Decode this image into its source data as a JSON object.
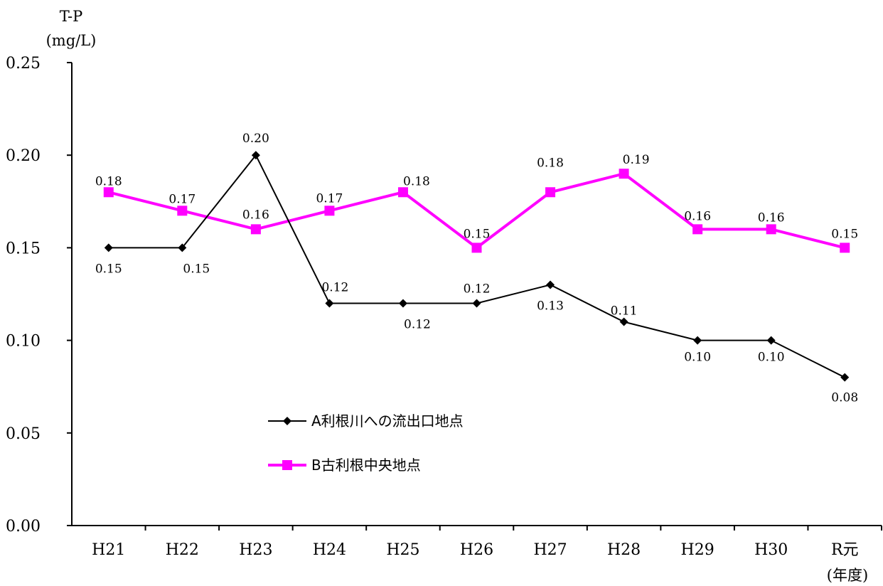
{
  "chart_data": {
    "type": "line",
    "ylabel": "T-P",
    "yunit": "(mg/L)",
    "xunit": "(年度)",
    "categories": [
      "H21",
      "H22",
      "H23",
      "H24",
      "H25",
      "H26",
      "H27",
      "H28",
      "H29",
      "H30",
      "R元"
    ],
    "ylim": [
      0,
      0.25
    ],
    "yticks": [
      "0.00",
      "0.05",
      "0.10",
      "0.15",
      "0.20",
      "0.25"
    ],
    "grid": false,
    "legend_position": "center-left",
    "series": [
      {
        "name": "A利根川への流出口地点",
        "color": "#000000",
        "marker": "diamond",
        "values": [
          0.15,
          0.15,
          0.2,
          0.12,
          0.12,
          0.12,
          0.13,
          0.11,
          0.1,
          0.1,
          0.08
        ],
        "labels": [
          "0.15",
          "0.15",
          "0.20",
          "0.12",
          "0.12",
          "0.12",
          "0.13",
          "0.11",
          "0.10",
          "0.10",
          "0.08"
        ]
      },
      {
        "name": "B古利根中央地点",
        "color": "#ff00ff",
        "marker": "square",
        "values": [
          0.18,
          0.17,
          0.16,
          0.17,
          0.18,
          0.15,
          0.18,
          0.19,
          0.16,
          0.16,
          0.15
        ],
        "labels": [
          "0.18",
          "0.17",
          "0.16",
          "0.17",
          "0.18",
          "0.15",
          "0.18",
          "0.19",
          "0.16",
          "0.16",
          "0.15"
        ]
      }
    ]
  }
}
